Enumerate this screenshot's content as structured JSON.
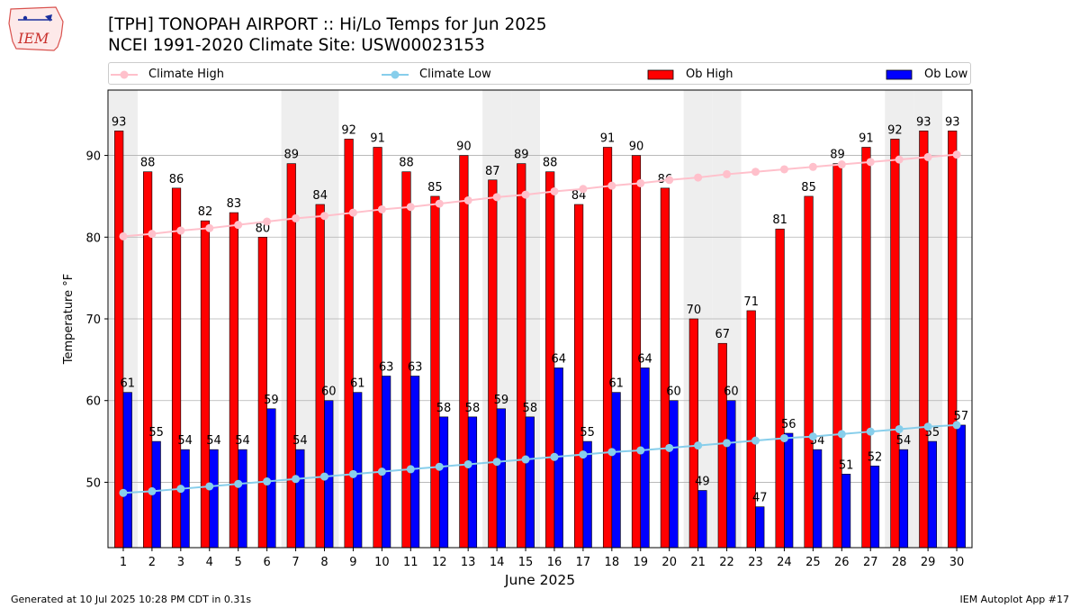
{
  "header": {
    "title": "[TPH] TONOPAH AIRPORT :: Hi/Lo Temps for Jun 2025",
    "subtitle": "NCEI 1991-2020 Climate Site: USW00023153",
    "logo_text": "IEM"
  },
  "footer": {
    "generated": "Generated at 10 Jul 2025 10:28 PM CDT in 0.31s",
    "app": "IEM Autoplot App #17"
  },
  "colors": {
    "ob_high": "#ff0000",
    "ob_low": "#0000ff",
    "climate_high": "#ffc0cb",
    "climate_low": "#87ceeb",
    "weekend_shade": "#eeeeee",
    "grid": "#b0b0b0"
  },
  "chart_data": {
    "type": "bar",
    "title": "[TPH] TONOPAH AIRPORT :: Hi/Lo Temps for Jun 2025",
    "xlabel": "June 2025",
    "ylabel": "Temperature °F",
    "ylim": [
      42,
      98
    ],
    "yticks": [
      50,
      60,
      70,
      80,
      90
    ],
    "grid": true,
    "legend_position": "top",
    "categories": [
      "1",
      "2",
      "3",
      "4",
      "5",
      "6",
      "7",
      "8",
      "9",
      "10",
      "11",
      "12",
      "13",
      "14",
      "15",
      "16",
      "17",
      "18",
      "19",
      "20",
      "21",
      "22",
      "23",
      "24",
      "25",
      "26",
      "27",
      "28",
      "29",
      "30"
    ],
    "shaded_days": [
      1,
      7,
      8,
      14,
      15,
      21,
      22,
      28,
      29
    ],
    "series": [
      {
        "name": "Ob High",
        "kind": "bar",
        "values": [
          93,
          88,
          86,
          82,
          83,
          80,
          89,
          84,
          92,
          91,
          88,
          85,
          90,
          87,
          89,
          88,
          84,
          91,
          90,
          86,
          70,
          67,
          71,
          81,
          85,
          89,
          91,
          92,
          93,
          93
        ]
      },
      {
        "name": "Ob Low",
        "kind": "bar",
        "values": [
          61,
          55,
          54,
          54,
          54,
          59,
          54,
          60,
          61,
          63,
          63,
          58,
          58,
          59,
          58,
          64,
          55,
          61,
          64,
          60,
          49,
          60,
          47,
          56,
          54,
          51,
          52,
          54,
          55,
          57
        ]
      },
      {
        "name": "Climate High",
        "kind": "line",
        "values": [
          80.1,
          80.4,
          80.8,
          81.1,
          81.5,
          81.9,
          82.3,
          82.6,
          83.0,
          83.4,
          83.7,
          84.1,
          84.5,
          84.9,
          85.2,
          85.6,
          85.9,
          86.3,
          86.6,
          87.0,
          87.3,
          87.7,
          88.0,
          88.3,
          88.6,
          88.9,
          89.2,
          89.5,
          89.8,
          90.1
        ]
      },
      {
        "name": "Climate Low",
        "kind": "line",
        "values": [
          48.7,
          48.9,
          49.2,
          49.5,
          49.8,
          50.1,
          50.4,
          50.7,
          51.0,
          51.3,
          51.6,
          51.9,
          52.2,
          52.5,
          52.8,
          53.1,
          53.4,
          53.7,
          53.9,
          54.2,
          54.5,
          54.8,
          55.1,
          55.4,
          55.6,
          55.9,
          56.2,
          56.5,
          56.8,
          57.0
        ]
      }
    ]
  }
}
